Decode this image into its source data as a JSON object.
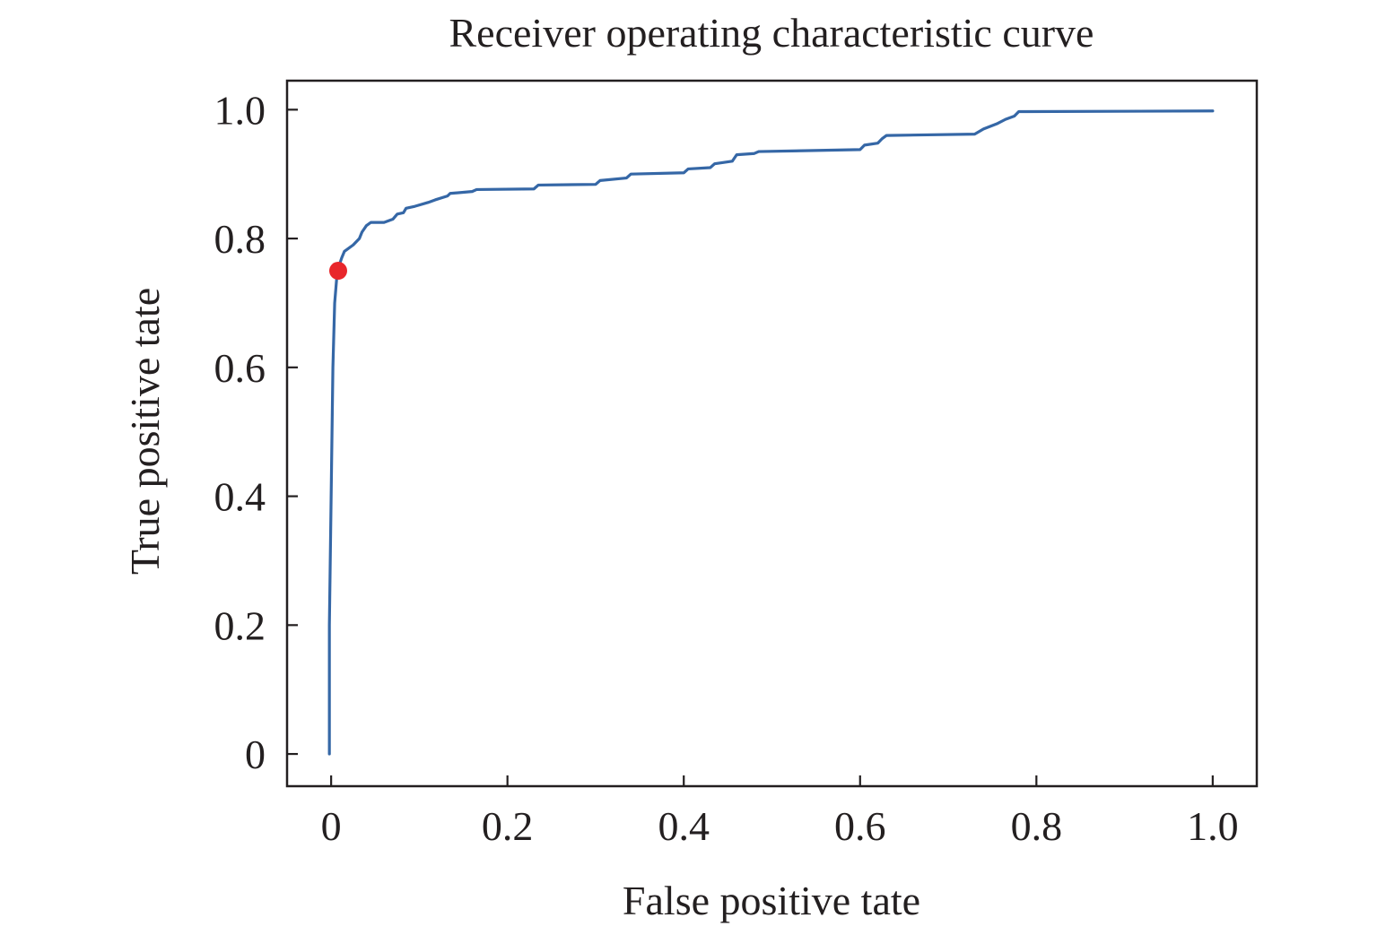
{
  "chart_data": {
    "type": "line",
    "title": "Receiver operating characteristic curve",
    "xlabel": "False positive tate",
    "ylabel": "True positive tate",
    "xlim": [
      -0.05,
      1.05
    ],
    "ylim": [
      -0.05,
      1.045
    ],
    "xticks": [
      0,
      0.2,
      0.4,
      0.6,
      0.8,
      1.0
    ],
    "xtick_labels": [
      "0",
      "0.2",
      "0.4",
      "0.6",
      "0.8",
      "1.0"
    ],
    "yticks": [
      0,
      0.2,
      0.4,
      0.6,
      0.8,
      1.0
    ],
    "ytick_labels": [
      "0",
      "0.2",
      "0.4",
      "0.6",
      "0.8",
      "1.0"
    ],
    "grid": false,
    "legend": "none",
    "colors": {
      "line": "#3567a6",
      "marker": "#e8262b",
      "axis": "#231f20"
    },
    "series": [
      {
        "points": [
          [
            -0.002,
            0.0
          ],
          [
            -0.002,
            0.2
          ],
          [
            0.0,
            0.4
          ],
          [
            0.002,
            0.6
          ],
          [
            0.004,
            0.7
          ],
          [
            0.007,
            0.75
          ],
          [
            0.012,
            0.77
          ],
          [
            0.015,
            0.78
          ],
          [
            0.025,
            0.79
          ],
          [
            0.032,
            0.8
          ],
          [
            0.035,
            0.81
          ],
          [
            0.04,
            0.82
          ],
          [
            0.045,
            0.825
          ],
          [
            0.06,
            0.825
          ],
          [
            0.07,
            0.83
          ],
          [
            0.075,
            0.838
          ],
          [
            0.082,
            0.84
          ],
          [
            0.085,
            0.847
          ],
          [
            0.095,
            0.85
          ],
          [
            0.11,
            0.856
          ],
          [
            0.118,
            0.86
          ],
          [
            0.132,
            0.866
          ],
          [
            0.135,
            0.87
          ],
          [
            0.16,
            0.873
          ],
          [
            0.165,
            0.876
          ],
          [
            0.23,
            0.877
          ],
          [
            0.235,
            0.883
          ],
          [
            0.3,
            0.884
          ],
          [
            0.305,
            0.89
          ],
          [
            0.335,
            0.894
          ],
          [
            0.34,
            0.9
          ],
          [
            0.4,
            0.902
          ],
          [
            0.405,
            0.908
          ],
          [
            0.43,
            0.91
          ],
          [
            0.435,
            0.916
          ],
          [
            0.455,
            0.92
          ],
          [
            0.46,
            0.93
          ],
          [
            0.48,
            0.932
          ],
          [
            0.485,
            0.935
          ],
          [
            0.6,
            0.938
          ],
          [
            0.605,
            0.945
          ],
          [
            0.62,
            0.948
          ],
          [
            0.625,
            0.955
          ],
          [
            0.63,
            0.96
          ],
          [
            0.73,
            0.962
          ],
          [
            0.74,
            0.97
          ],
          [
            0.755,
            0.978
          ],
          [
            0.765,
            0.985
          ],
          [
            0.775,
            0.99
          ],
          [
            0.78,
            0.997
          ],
          [
            1.0,
            0.998
          ]
        ]
      }
    ],
    "markers": [
      {
        "x": 0.008,
        "y": 0.75
      }
    ]
  }
}
